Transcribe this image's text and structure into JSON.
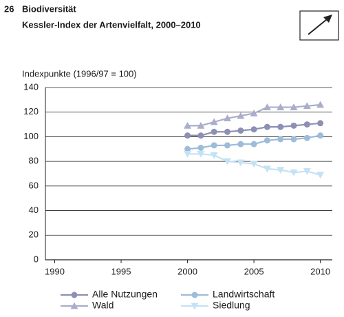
{
  "chart_data": {
    "type": "line",
    "number": "26",
    "heading": "Biodiversität",
    "title": "Kessler-Index der Artenvielfalt, 2000–2010",
    "ylabel": "Indexpunkte (1996/97 = 100)",
    "x": [
      2000,
      2001,
      2002,
      2003,
      2004,
      2005,
      2006,
      2007,
      2008,
      2009,
      2010
    ],
    "xlim": [
      1989.3,
      2010.9
    ],
    "xticks": [
      1990,
      1995,
      2000,
      2005,
      2010
    ],
    "ylim": [
      0,
      140
    ],
    "yticks": [
      0,
      20,
      40,
      60,
      80,
      100,
      120,
      140
    ],
    "grid": true,
    "series": [
      {
        "name": "Alle Nutzungen",
        "color": "#8d90b4",
        "marker": "circle",
        "values": [
          101,
          101,
          104,
          104,
          105,
          106,
          108,
          108,
          109,
          110,
          111
        ]
      },
      {
        "name": "Landwirtschaft",
        "color": "#9dbcda",
        "marker": "circle",
        "values": [
          90,
          91,
          93,
          93,
          94,
          94,
          97,
          98,
          98,
          99,
          101
        ]
      },
      {
        "name": "Wald",
        "color": "#aaadcb",
        "marker": "triangle",
        "values": [
          109,
          109,
          112,
          115,
          117,
          119,
          124,
          124,
          124,
          125,
          126
        ]
      },
      {
        "name": "Siedlung",
        "color": "#c4e2f5",
        "marker": "triangle-down",
        "values": [
          86,
          86,
          85,
          80,
          79,
          78,
          74,
          73,
          71,
          72,
          69
        ]
      }
    ]
  }
}
